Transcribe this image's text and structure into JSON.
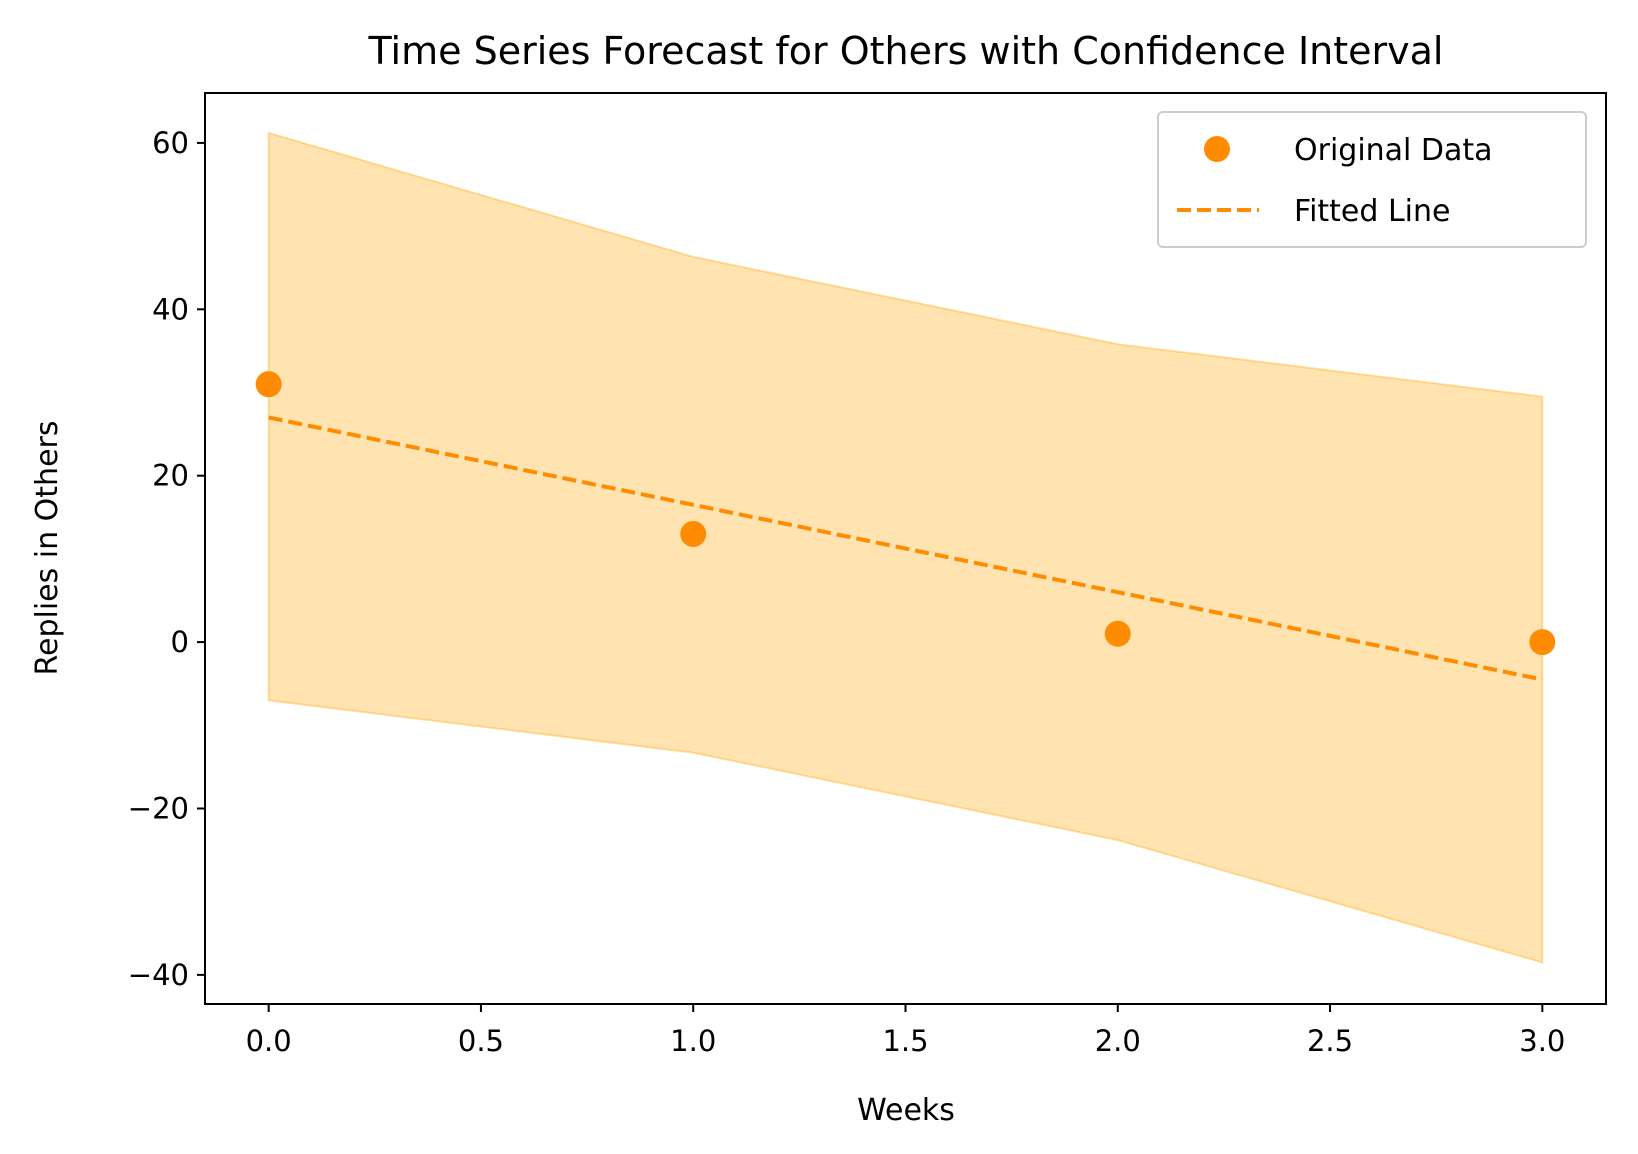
{
  "chart_data": {
    "type": "line",
    "title": "Time Series Forecast for Others with Confidence Interval",
    "xlabel": "Weeks",
    "ylabel": "Replies in Others",
    "xlim": [
      -0.15,
      3.15
    ],
    "ylim": [
      -43.5,
      66
    ],
    "xticks": [
      0.0,
      0.5,
      1.0,
      1.5,
      2.0,
      2.5,
      3.0
    ],
    "xtick_labels": [
      "0.0",
      "0.5",
      "1.0",
      "1.5",
      "2.0",
      "2.5",
      "3.0"
    ],
    "yticks": [
      -40,
      -20,
      0,
      20,
      40,
      60
    ],
    "ytick_labels": [
      "−40",
      "−20",
      "0",
      "20",
      "40",
      "60"
    ],
    "grid": false,
    "legend_position": "top-right",
    "series": [
      {
        "name": "Original Data",
        "kind": "scatter",
        "color": "#ff8c00",
        "x": [
          0,
          1,
          2,
          3
        ],
        "y": [
          31,
          13,
          1,
          0
        ]
      },
      {
        "name": "Fitted Line",
        "kind": "dashed-line",
        "color": "#ff8c00",
        "x": [
          0,
          1,
          2,
          3
        ],
        "y": [
          27.0,
          16.5,
          6.0,
          -4.5
        ]
      }
    ],
    "confidence_band": {
      "color": "#ffa500",
      "x": [
        0,
        1,
        2,
        3
      ],
      "lower": [
        -7.0,
        -13.3,
        -23.8,
        -38.5
      ],
      "upper": [
        61.2,
        46.3,
        35.8,
        29.5
      ]
    }
  }
}
